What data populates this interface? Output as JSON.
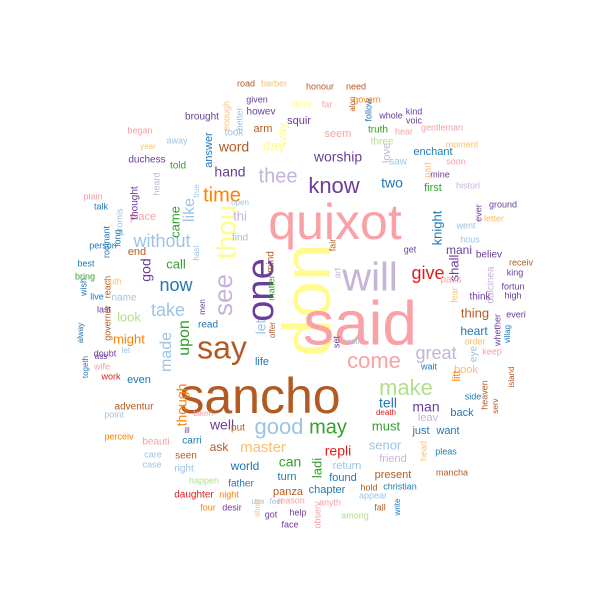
{
  "palette": {
    "pink": "#f9a1a6",
    "yellow": "#fffb8f",
    "lavender": "#c6b3d9",
    "brown": "#b35a22",
    "purple": "#6a3d9a",
    "blue": "#3a6fb0",
    "lightblue": "#9cc4e4",
    "green": "#33a02c",
    "lightgreen": "#b2df8a",
    "orange": "#ff7f00",
    "lightorange": "#fdbf6f",
    "red": "#e31a1c",
    "teal": "#1f78b4"
  },
  "words": [
    {
      "text": "sancho",
      "color": "brown"
    },
    {
      "text": "don",
      "color": "yellow"
    },
    {
      "text": "said",
      "color": "pink"
    },
    {
      "text": "quixot",
      "color": "pink"
    },
    {
      "text": "will",
      "color": "lavender"
    },
    {
      "text": "one",
      "color": "purple"
    },
    {
      "text": "say",
      "color": "brown"
    },
    {
      "text": "see",
      "color": "lavender"
    },
    {
      "text": "thou",
      "color": "yellow"
    },
    {
      "text": "know",
      "color": "purple"
    },
    {
      "text": "thee",
      "color": "lavender"
    },
    {
      "text": "time",
      "color": "orange"
    },
    {
      "text": "come",
      "color": "pink"
    },
    {
      "text": "make",
      "color": "lightgreen"
    },
    {
      "text": "good",
      "color": "lightblue"
    },
    {
      "text": "may",
      "color": "green"
    },
    {
      "text": "great",
      "color": "lavender"
    },
    {
      "text": "give",
      "color": "red"
    },
    {
      "text": "take",
      "color": "lightblue"
    },
    {
      "text": "now",
      "color": "teal"
    },
    {
      "text": "without",
      "color": "lightblue"
    },
    {
      "text": "like",
      "color": "lightblue"
    },
    {
      "text": "upon",
      "color": "green"
    },
    {
      "text": "made",
      "color": "lightblue"
    },
    {
      "text": "worship",
      "color": "purple"
    },
    {
      "text": "two",
      "color": "teal"
    },
    {
      "text": "tell",
      "color": "teal"
    },
    {
      "text": "man",
      "color": "purple"
    },
    {
      "text": "master",
      "color": "lightorange"
    },
    {
      "text": "repli",
      "color": "red"
    },
    {
      "text": "well",
      "color": "purple"
    },
    {
      "text": "can",
      "color": "green"
    },
    {
      "text": "ladi",
      "color": "green"
    },
    {
      "text": "though",
      "color": "orange"
    },
    {
      "text": "hand",
      "color": "purple"
    },
    {
      "text": "word",
      "color": "brown"
    },
    {
      "text": "day",
      "color": "yellow"
    },
    {
      "text": "call",
      "color": "green"
    },
    {
      "text": "look",
      "color": "lightgreen"
    },
    {
      "text": "might",
      "color": "orange"
    },
    {
      "text": "must",
      "color": "green"
    },
    {
      "text": "senor",
      "color": "lightblue"
    },
    {
      "text": "knight",
      "color": "teal"
    },
    {
      "text": "thing",
      "color": "brown"
    },
    {
      "text": "heart",
      "color": "teal"
    },
    {
      "text": "first",
      "color": "green"
    },
    {
      "text": "shall",
      "color": "purple"
    },
    {
      "text": "mani",
      "color": "purple"
    },
    {
      "text": "world",
      "color": "teal"
    },
    {
      "text": "ask",
      "color": "brown"
    },
    {
      "text": "life",
      "color": "teal"
    },
    {
      "text": "seem",
      "color": "pink"
    },
    {
      "text": "squir",
      "color": "purple"
    },
    {
      "text": "arm",
      "color": "brown"
    },
    {
      "text": "enchant",
      "color": "teal"
    },
    {
      "text": "let",
      "color": "lightblue"
    },
    {
      "text": "way",
      "color": "yellow"
    },
    {
      "text": "even",
      "color": "teal"
    },
    {
      "text": "god",
      "color": "purple"
    },
    {
      "text": "came",
      "color": "green"
    },
    {
      "text": "place",
      "color": "pink"
    },
    {
      "text": "end",
      "color": "brown"
    },
    {
      "text": "name",
      "color": "lightblue"
    },
    {
      "text": "answer",
      "color": "teal"
    },
    {
      "text": "return",
      "color": "lightblue"
    },
    {
      "text": "friend",
      "color": "lavender"
    },
    {
      "text": "found",
      "color": "teal"
    },
    {
      "text": "chapter",
      "color": "teal"
    },
    {
      "text": "turn",
      "color": "teal"
    },
    {
      "text": "panza",
      "color": "brown"
    },
    {
      "text": "book",
      "color": "lightorange"
    },
    {
      "text": "back",
      "color": "teal"
    },
    {
      "text": "leav",
      "color": "lavender"
    },
    {
      "text": "just",
      "color": "teal"
    },
    {
      "text": "want",
      "color": "teal"
    },
    {
      "text": "present",
      "color": "brown"
    },
    {
      "text": "adventur",
      "color": "brown"
    },
    {
      "text": "right",
      "color": "lightblue"
    },
    {
      "text": "seen",
      "color": "brown"
    },
    {
      "text": "carri",
      "color": "teal"
    },
    {
      "text": "beauti",
      "color": "pink"
    },
    {
      "text": "put",
      "color": "brown"
    },
    {
      "text": "dulcinea",
      "color": "lavender"
    },
    {
      "text": "litt",
      "color": "orange"
    },
    {
      "text": "truth",
      "color": "green"
    },
    {
      "text": "love",
      "color": "lavender"
    },
    {
      "text": "told",
      "color": "green"
    },
    {
      "text": "took",
      "color": "lightblue"
    },
    {
      "text": "howev",
      "color": "purple"
    },
    {
      "text": "dont",
      "color": "yellow"
    },
    {
      "text": "mind",
      "color": "brown"
    },
    {
      "text": "matter",
      "color": "green"
    },
    {
      "text": "read",
      "color": "teal"
    },
    {
      "text": "thought",
      "color": "purple"
    },
    {
      "text": "duchess",
      "color": "purple"
    },
    {
      "text": "heard",
      "color": "lavender"
    },
    {
      "text": "began",
      "color": "pink"
    },
    {
      "text": "brought",
      "color": "purple"
    },
    {
      "text": "given",
      "color": "purple"
    },
    {
      "text": "father",
      "color": "teal"
    },
    {
      "text": "night",
      "color": "orange"
    },
    {
      "text": "daughter",
      "color": "red"
    },
    {
      "text": "happen",
      "color": "lightgreen"
    },
    {
      "text": "four",
      "color": "orange"
    },
    {
      "text": "desir",
      "color": "purple"
    },
    {
      "text": "face",
      "color": "purple"
    },
    {
      "text": "got",
      "color": "purple"
    },
    {
      "text": "help",
      "color": "purple"
    },
    {
      "text": "reason",
      "color": "pink"
    },
    {
      "text": "anyth",
      "color": "pink"
    },
    {
      "text": "among",
      "color": "lightgreen"
    },
    {
      "text": "appear",
      "color": "lightblue"
    },
    {
      "text": "christian",
      "color": "teal"
    },
    {
      "text": "fall",
      "color": "brown"
    },
    {
      "text": "hold",
      "color": "brown"
    },
    {
      "text": "write",
      "color": "teal"
    },
    {
      "text": "observ",
      "color": "pink"
    },
    {
      "text": "mancha",
      "color": "brown"
    },
    {
      "text": "head",
      "color": "lightorange"
    },
    {
      "text": "pleas",
      "color": "teal"
    },
    {
      "text": "side",
      "color": "teal"
    },
    {
      "text": "heaven",
      "color": "brown"
    },
    {
      "text": "serv",
      "color": "brown"
    },
    {
      "text": "island",
      "color": "brown"
    },
    {
      "text": "villag",
      "color": "teal"
    },
    {
      "text": "keep",
      "color": "pink"
    },
    {
      "text": "order",
      "color": "lightorange"
    },
    {
      "text": "think",
      "color": "purple"
    },
    {
      "text": "believ",
      "color": "purple"
    },
    {
      "text": "receiv",
      "color": "brown"
    },
    {
      "text": "king",
      "color": "purple"
    },
    {
      "text": "fortun",
      "color": "purple"
    },
    {
      "text": "high",
      "color": "purple"
    },
    {
      "text": "everi",
      "color": "purple"
    },
    {
      "text": "whether",
      "color": "purple"
    },
    {
      "text": "ground",
      "color": "purple"
    },
    {
      "text": "letter",
      "color": "lightorange"
    },
    {
      "text": "soon",
      "color": "pink"
    },
    {
      "text": "moment",
      "color": "lightorange"
    },
    {
      "text": "gentleman",
      "color": "pink"
    },
    {
      "text": "histori",
      "color": "lavender"
    },
    {
      "text": "mine",
      "color": "purple"
    },
    {
      "text": "voic",
      "color": "purple"
    },
    {
      "text": "kind",
      "color": "purple"
    },
    {
      "text": "whole",
      "color": "purple"
    },
    {
      "text": "part",
      "color": "lightorange"
    },
    {
      "text": "hear",
      "color": "pink"
    },
    {
      "text": "saw",
      "color": "lightblue"
    },
    {
      "text": "honour",
      "color": "brown"
    },
    {
      "text": "need",
      "color": "brown"
    },
    {
      "text": "govern",
      "color": "orange"
    },
    {
      "text": "three",
      "color": "lightgreen"
    },
    {
      "text": "alon",
      "color": "brown"
    },
    {
      "text": "follow",
      "color": "teal"
    },
    {
      "text": "road",
      "color": "brown"
    },
    {
      "text": "barber",
      "color": "lightorange"
    },
    {
      "text": "enough",
      "color": "lightorange"
    },
    {
      "text": "better",
      "color": "lightblue"
    },
    {
      "text": "far",
      "color": "pink"
    },
    {
      "text": "year",
      "color": "lightorange"
    },
    {
      "text": "away",
      "color": "lightblue"
    },
    {
      "text": "care",
      "color": "lightblue"
    },
    {
      "text": "case",
      "color": "lightblue"
    },
    {
      "text": "perceiv",
      "color": "orange"
    },
    {
      "text": "point",
      "color": "lightblue"
    },
    {
      "text": "wife",
      "color": "pink"
    },
    {
      "text": "ass",
      "color": "purple"
    },
    {
      "text": "work",
      "color": "red"
    },
    {
      "text": "doubt",
      "color": "purple"
    },
    {
      "text": "togeth",
      "color": "teal"
    },
    {
      "text": "alway",
      "color": "teal"
    },
    {
      "text": "governor",
      "color": "brown"
    },
    {
      "text": "live",
      "color": "teal"
    },
    {
      "text": "wish",
      "color": "teal"
    },
    {
      "text": "last",
      "color": "purple"
    },
    {
      "text": "reach",
      "color": "brown"
    },
    {
      "text": "bring",
      "color": "green"
    },
    {
      "text": "best",
      "color": "teal"
    },
    {
      "text": "person",
      "color": "teal"
    },
    {
      "text": "rocinant",
      "color": "teal"
    },
    {
      "text": "long",
      "color": "teal"
    },
    {
      "text": "promis",
      "color": "lightblue"
    },
    {
      "text": "plain",
      "color": "pink"
    },
    {
      "text": "talk",
      "color": "teal"
    },
    {
      "text": "noth",
      "color": "lightorange"
    },
    {
      "text": "ill",
      "color": "purple"
    },
    {
      "text": "taken",
      "color": "pink"
    },
    {
      "text": "death",
      "color": "red"
    },
    {
      "text": "set",
      "color": "purple"
    },
    {
      "text": "castl",
      "color": "lightblue"
    },
    {
      "text": "art",
      "color": "lavender"
    },
    {
      "text": "fair",
      "color": "brown"
    },
    {
      "text": "get",
      "color": "purple"
    },
    {
      "text": "went",
      "color": "lightblue"
    },
    {
      "text": "hous",
      "color": "lightblue"
    },
    {
      "text": "ever",
      "color": "purple"
    },
    {
      "text": "wait",
      "color": "teal"
    },
    {
      "text": "find",
      "color": "lightblue"
    },
    {
      "text": "open",
      "color": "lightblue"
    },
    {
      "text": "hast",
      "color": "lightblue"
    },
    {
      "text": "true",
      "color": "lightblue"
    },
    {
      "text": "men",
      "color": "purple"
    },
    {
      "text": "offer",
      "color": "brown"
    },
    {
      "text": "feel",
      "color": "lightblue"
    },
    {
      "text": "short",
      "color": "lightorange"
    },
    {
      "text": "use",
      "color": "lightblue"
    },
    {
      "text": "pass",
      "color": "pink"
    },
    {
      "text": "eye",
      "color": "lightblue"
    },
    {
      "text": "let",
      "color": "lightblue"
    },
    {
      "text": "thi",
      "color": "lavender"
    },
    {
      "text": "fear",
      "color": "lightorange"
    }
  ]
}
